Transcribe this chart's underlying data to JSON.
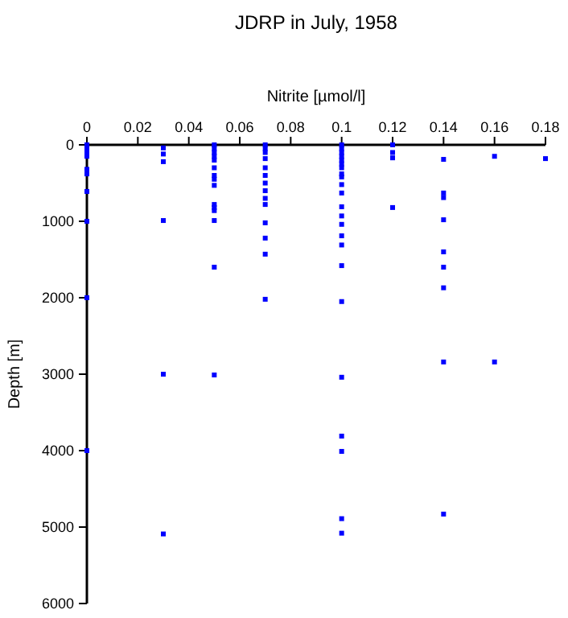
{
  "chart_data": {
    "type": "scatter",
    "title": "JDRP in July, 1958",
    "xlabel": "Nitrite [µmol/l]",
    "ylabel": "Depth [m]",
    "xlim": [
      0,
      0.18
    ],
    "xticks": [
      0,
      0.02,
      0.04,
      0.06,
      0.08,
      0.1,
      0.12,
      0.14,
      0.16,
      0.18
    ],
    "ylim": [
      6000,
      0
    ],
    "yticks": [
      0,
      1000,
      2000,
      3000,
      4000,
      5000,
      6000
    ],
    "grid": false,
    "marker": "square",
    "series": [
      {
        "color": "#0000ff",
        "x": [
          0,
          0,
          0,
          0,
          0,
          0,
          0,
          0,
          0,
          0,
          0.03,
          0.03,
          0.03,
          0.03,
          0.03,
          0.03,
          0.05,
          0.05,
          0.05,
          0.05,
          0.05,
          0.05,
          0.05,
          0.05,
          0.05,
          0.05,
          0.05,
          0.05,
          0.05,
          0.05,
          0.05,
          0.07,
          0.07,
          0.07,
          0.07,
          0.07,
          0.07,
          0.07,
          0.07,
          0.07,
          0.07,
          0.07,
          0.07,
          0.07,
          0.07,
          0.1,
          0.1,
          0.1,
          0.1,
          0.1,
          0.1,
          0.1,
          0.1,
          0.1,
          0.1,
          0.1,
          0.1,
          0.1,
          0.1,
          0.1,
          0.1,
          0.1,
          0.1,
          0.1,
          0.1,
          0.1,
          0.1,
          0.1,
          0.12,
          0.12,
          0.12,
          0.12,
          0.14,
          0.14,
          0.14,
          0.14,
          0.14,
          0.14,
          0.14,
          0.14,
          0.14,
          0.16,
          0.16,
          0.18
        ],
        "values": [
          0,
          50,
          100,
          150,
          320,
          380,
          610,
          1000,
          2000,
          4000,
          40,
          120,
          220,
          990,
          3000,
          5090,
          0,
          50,
          100,
          150,
          200,
          300,
          400,
          450,
          530,
          780,
          820,
          860,
          990,
          1600,
          3010,
          0,
          50,
          100,
          180,
          300,
          400,
          500,
          600,
          700,
          780,
          1020,
          1220,
          1430,
          2020,
          0,
          50,
          100,
          150,
          200,
          250,
          300,
          380,
          420,
          520,
          630,
          810,
          930,
          1040,
          1190,
          1310,
          1580,
          2050,
          3040,
          3810,
          4010,
          4890,
          5080,
          0,
          100,
          170,
          820,
          190,
          630,
          690,
          980,
          1400,
          1600,
          1870,
          2840,
          4830,
          150,
          2840,
          180
        ]
      }
    ]
  }
}
